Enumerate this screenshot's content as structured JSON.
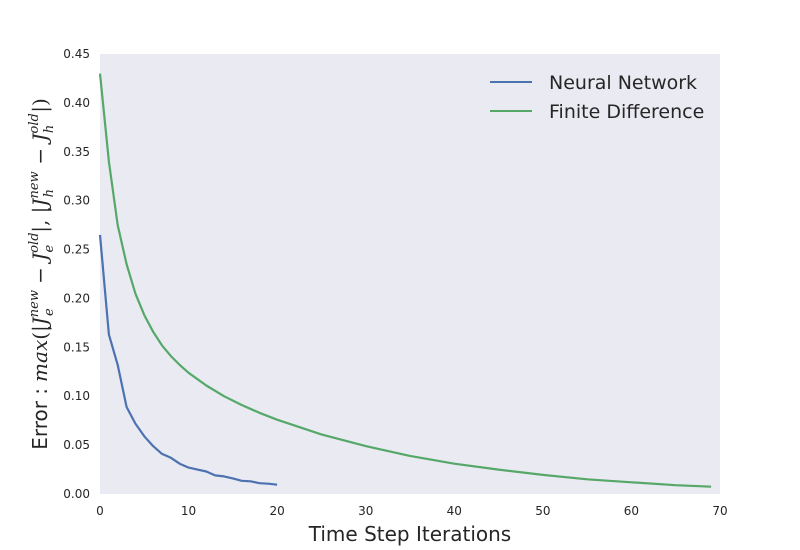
{
  "chart_data": {
    "type": "line",
    "xlabel": "Time Step Iterations",
    "ylabel_prefix": "Error :",
    "ylabel_math": "max(|J_e^new − J_e^old|, |J_h^new − J_h^old|)",
    "xlim": [
      0,
      70
    ],
    "ylim": [
      0,
      0.45
    ],
    "x_ticks": [
      0,
      10,
      20,
      30,
      40,
      50,
      60,
      70
    ],
    "y_ticks": [
      0.0,
      0.05,
      0.1,
      0.15,
      0.2,
      0.25,
      0.3,
      0.35,
      0.4,
      0.45
    ],
    "y_tick_labels": [
      "0.00",
      "0.05",
      "0.10",
      "0.15",
      "0.20",
      "0.25",
      "0.30",
      "0.35",
      "0.40",
      "0.45"
    ],
    "x_tick_labels": [
      "0",
      "10",
      "20",
      "30",
      "40",
      "50",
      "60",
      "70"
    ],
    "grid": false,
    "legend_position": "top-right",
    "background": "#eaeaf2",
    "series": [
      {
        "name": "Neural Network",
        "color": "#4c72b0",
        "x": [
          0,
          1,
          2,
          3,
          4,
          5,
          6,
          7,
          8,
          9,
          10,
          11,
          12,
          13,
          14,
          15,
          16,
          17,
          18,
          19,
          20
        ],
        "y": [
          0.265,
          0.163,
          0.132,
          0.089,
          0.072,
          0.059,
          0.049,
          0.041,
          0.037,
          0.031,
          0.027,
          0.025,
          0.023,
          0.019,
          0.018,
          0.016,
          0.0135,
          0.013,
          0.011,
          0.0105,
          0.0095
        ]
      },
      {
        "name": "Finite Difference",
        "color": "#55a868",
        "x": [
          0,
          1,
          2,
          3,
          4,
          5,
          6,
          7,
          8,
          9,
          10,
          12,
          14,
          16,
          18,
          20,
          25,
          30,
          35,
          40,
          45,
          50,
          55,
          60,
          65,
          69
        ],
        "y": [
          0.43,
          0.34,
          0.275,
          0.235,
          0.205,
          0.183,
          0.166,
          0.152,
          0.141,
          0.132,
          0.124,
          0.111,
          0.1,
          0.091,
          0.083,
          0.076,
          0.061,
          0.049,
          0.039,
          0.031,
          0.025,
          0.0195,
          0.015,
          0.012,
          0.009,
          0.0075
        ]
      }
    ]
  }
}
